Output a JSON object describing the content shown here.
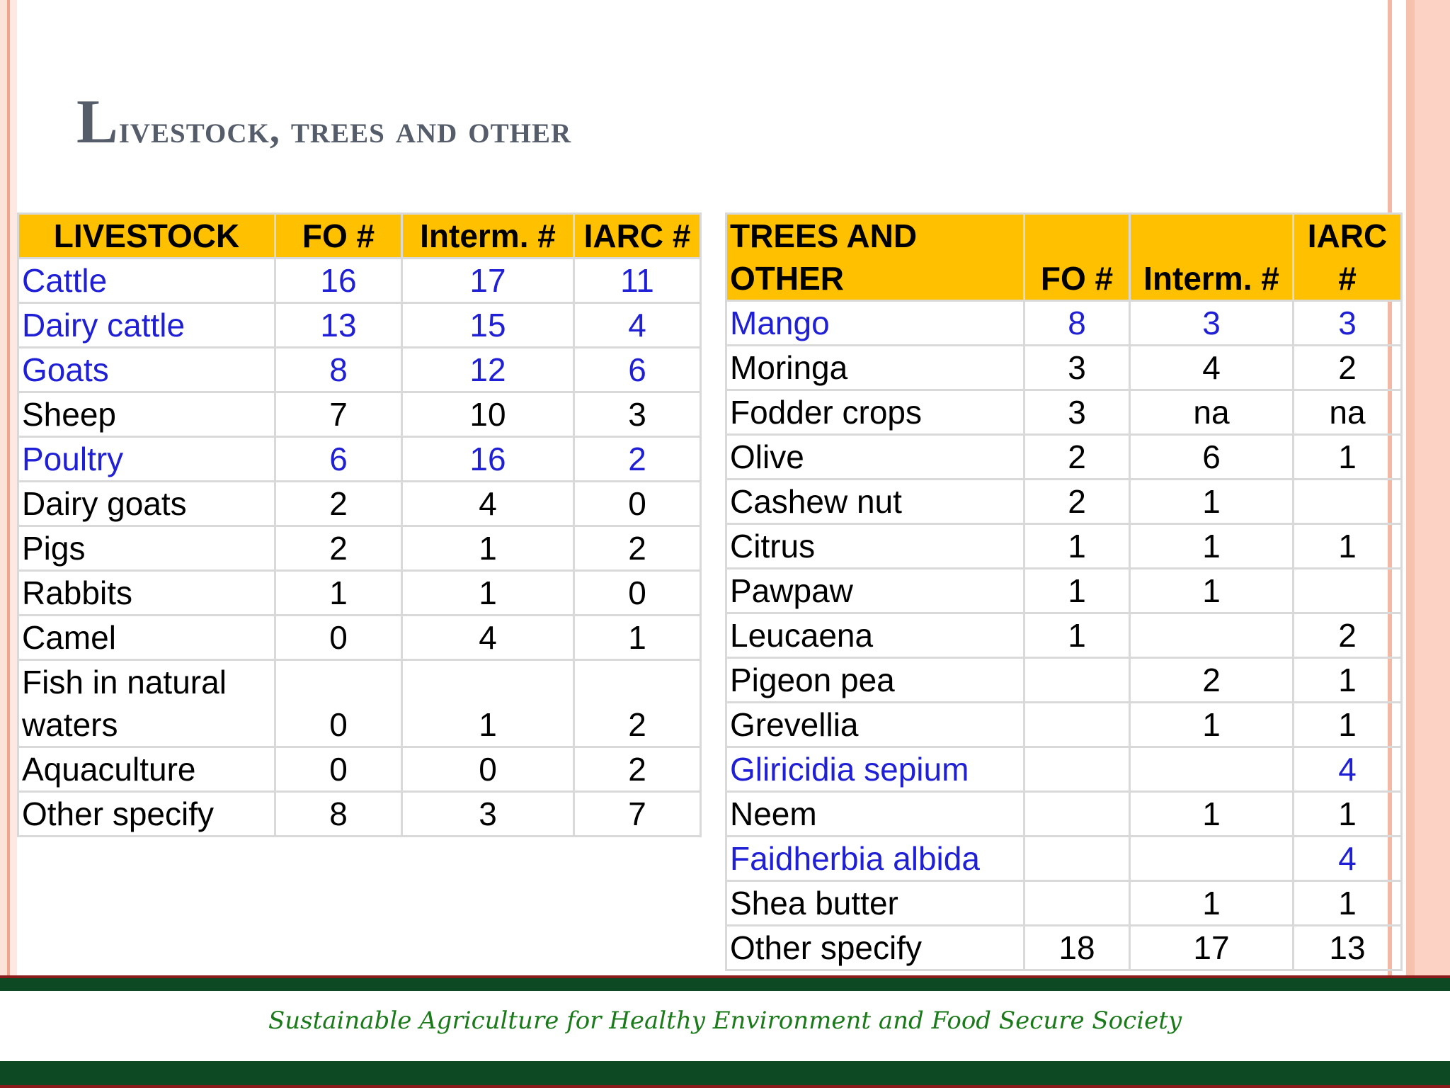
{
  "title": {
    "first": "L",
    "rest": "ivestock, trees and other"
  },
  "livestock": {
    "headers": [
      "LIVESTOCK",
      "FO #",
      "Interm. #",
      "IARC #"
    ],
    "rows": [
      {
        "name": "Cattle",
        "fo": "16",
        "interm": "17",
        "iarc": "11",
        "highlight": true
      },
      {
        "name": "Dairy cattle",
        "fo": "13",
        "interm": "15",
        "iarc": "4",
        "highlight": true
      },
      {
        "name": "Goats",
        "fo": "8",
        "interm": "12",
        "iarc": "6",
        "highlight": true
      },
      {
        "name": "Sheep",
        "fo": "7",
        "interm": "10",
        "iarc": "3",
        "highlight": false
      },
      {
        "name": "Poultry",
        "fo": "6",
        "interm": "16",
        "iarc": "2",
        "highlight": true
      },
      {
        "name": "Dairy goats",
        "fo": "2",
        "interm": "4",
        "iarc": "0",
        "highlight": false
      },
      {
        "name": "Pigs",
        "fo": "2",
        "interm": "1",
        "iarc": "2",
        "highlight": false
      },
      {
        "name": "Rabbits",
        "fo": "1",
        "interm": "1",
        "iarc": "0",
        "highlight": false
      },
      {
        "name": "Camel",
        "fo": "0",
        "interm": "4",
        "iarc": "1",
        "highlight": false
      },
      {
        "name": "Fish in natural waters",
        "fo": "0",
        "interm": "1",
        "iarc": "2",
        "highlight": false
      },
      {
        "name": "Aquaculture",
        "fo": "0",
        "interm": "0",
        "iarc": "2",
        "highlight": false
      },
      {
        "name": "Other specify",
        "fo": "8",
        "interm": "3",
        "iarc": "7",
        "highlight": false
      }
    ]
  },
  "trees": {
    "headers": [
      "TREES AND OTHER",
      "FO #",
      "Interm. #",
      "IARC #"
    ],
    "rows": [
      {
        "name": "Mango",
        "fo": "8",
        "interm": "3",
        "iarc": "3",
        "highlight": true
      },
      {
        "name": "Moringa",
        "fo": "3",
        "interm": "4",
        "iarc": "2",
        "highlight": false
      },
      {
        "name": "Fodder crops",
        "fo": "3",
        "interm": "na",
        "iarc": "na",
        "highlight": false
      },
      {
        "name": "Olive",
        "fo": "2",
        "interm": "6",
        "iarc": "1",
        "highlight": false
      },
      {
        "name": "Cashew nut",
        "fo": "2",
        "interm": "1",
        "iarc": "",
        "highlight": false
      },
      {
        "name": "Citrus",
        "fo": "1",
        "interm": "1",
        "iarc": "1",
        "highlight": false
      },
      {
        "name": "Pawpaw",
        "fo": "1",
        "interm": "1",
        "iarc": "",
        "highlight": false
      },
      {
        "name": "Leucaena",
        "fo": "1",
        "interm": "",
        "iarc": "2",
        "highlight": false
      },
      {
        "name": "Pigeon pea",
        "fo": "",
        "interm": "2",
        "iarc": "1",
        "highlight": false
      },
      {
        "name": "Grevellia",
        "fo": "",
        "interm": "1",
        "iarc": "1",
        "highlight": false
      },
      {
        "name": "Gliricidia sepium",
        "fo": "",
        "interm": "",
        "iarc": "4",
        "highlight": true
      },
      {
        "name": "Neem",
        "fo": "",
        "interm": "1",
        "iarc": "1",
        "highlight": false
      },
      {
        "name": "Faidherbia albida",
        "fo": "",
        "interm": "",
        "iarc": "4",
        "highlight": true
      },
      {
        "name": "Shea butter",
        "fo": "",
        "interm": "1",
        "iarc": "1",
        "highlight": false
      },
      {
        "name": "Other specify",
        "fo": "18",
        "interm": "17",
        "iarc": "13",
        "highlight": false
      }
    ]
  },
  "footer": {
    "tagline": "Sustainable Agriculture for Healthy Environment and Food Secure Society"
  },
  "colors": {
    "header_fill": "#ffc000",
    "highlight_text": "#1f1fd6",
    "title": "#565d6a",
    "footer_bar": "#0d4a24",
    "footer_text": "#1a7a1a"
  }
}
